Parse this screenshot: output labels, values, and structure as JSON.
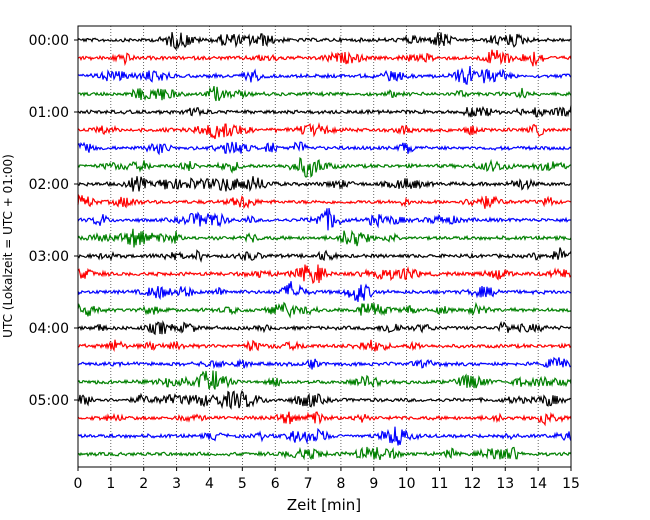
{
  "chart_data": {
    "type": "line",
    "title": "",
    "xlabel": "Zeit  [min]",
    "ylabel": "UTC (Lokalzeit = UTC + 01:00)",
    "xlim": [
      0,
      15
    ],
    "x_ticks": [
      "0",
      "1",
      "2",
      "3",
      "4",
      "5",
      "6",
      "7",
      "8",
      "9",
      "10",
      "11",
      "12",
      "13",
      "14",
      "15"
    ],
    "y_ticks": [
      "00:00",
      "01:00",
      "02:00",
      "03:00",
      "04:00",
      "05:00"
    ],
    "trace_start_times": [
      "00:00",
      "00:15",
      "00:30",
      "00:45",
      "01:00",
      "01:15",
      "01:30",
      "01:45",
      "02:00",
      "02:15",
      "02:30",
      "02:45",
      "03:00",
      "03:15",
      "03:30",
      "03:45",
      "04:00",
      "04:15",
      "04:30",
      "04:45",
      "05:00",
      "05:15",
      "05:30",
      "05:45"
    ],
    "trace_colors": [
      "#000000",
      "#ff0000",
      "#0000ff",
      "#008000"
    ],
    "grid": "vertical dotted lines at each minute",
    "legend": "none"
  }
}
